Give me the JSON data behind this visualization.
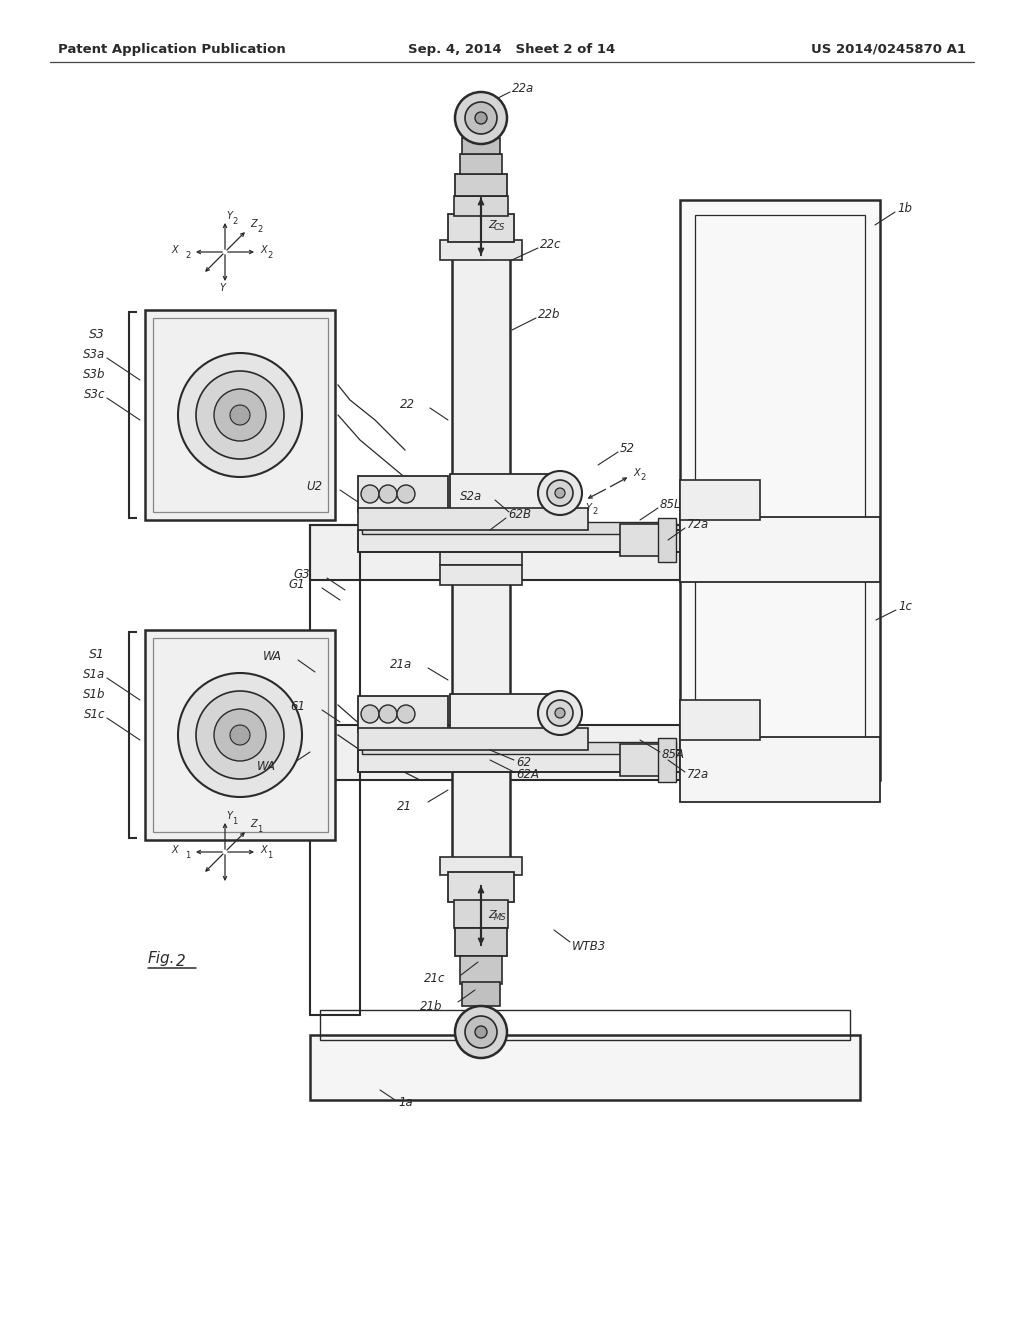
{
  "bg": "#ffffff",
  "lc": "#2a2a2a",
  "gray1": "#e8e8e8",
  "gray2": "#d0d0d0",
  "gray3": "#b8b8b8",
  "header_left": "Patent Application Publication",
  "header_center": "Sep. 4, 2014   Sheet 2 of 14",
  "header_right": "US 2014/0245870 A1",
  "fig_label": "Fig. 2",
  "pw": 10.24,
  "ph": 13.2,
  "dpi": 100
}
